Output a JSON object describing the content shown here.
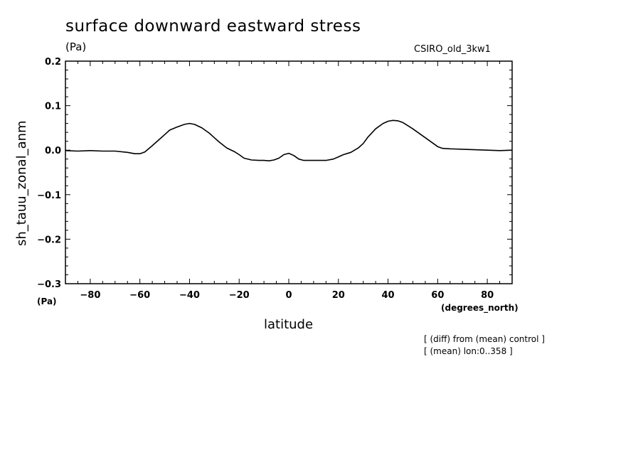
{
  "header": {
    "title": "surface downward eastward stress",
    "units": "(Pa)",
    "model": "CSIRO_old_3kw1"
  },
  "notes": {
    "line1": "[ (diff) from (mean) control ]",
    "line2": "[ (mean) lon:0..358 ]"
  },
  "chart_data": {
    "type": "line",
    "title": "surface downward eastward stress",
    "xlabel": "latitude",
    "x_units": "(degrees_north)",
    "ylabel": "sh_tauu_zonal_anm",
    "y_units": "(Pa)",
    "xlim": [
      -90,
      90
    ],
    "ylim": [
      -0.3,
      0.2
    ],
    "xticks": [
      -80,
      -60,
      -40,
      -20,
      0,
      20,
      40,
      60,
      80
    ],
    "xtick_labels": [
      "−80",
      "−60",
      "−40",
      "−20",
      "0",
      "20",
      "40",
      "60",
      "80"
    ],
    "yticks": [
      0.2,
      0.1,
      0.0,
      -0.1,
      -0.2,
      -0.3
    ],
    "ytick_labels": [
      "0.2",
      "0.1",
      "0.0",
      "−0.1",
      "−0.2",
      "−0.3"
    ],
    "grid": false,
    "series": [
      {
        "name": "sh_tauu_zonal_anm",
        "color": "#000000",
        "x": [
          -90,
          -85,
          -80,
          -75,
          -70,
          -65,
          -62,
          -60,
          -58,
          -55,
          -52,
          -50,
          -48,
          -45,
          -42,
          -40,
          -38,
          -35,
          -32,
          -30,
          -28,
          -25,
          -22,
          -20,
          -18,
          -15,
          -12,
          -10,
          -8,
          -6,
          -4,
          -2,
          0,
          2,
          4,
          6,
          8,
          10,
          12,
          15,
          18,
          20,
          22,
          25,
          28,
          30,
          32,
          35,
          38,
          40,
          42,
          44,
          46,
          48,
          50,
          52,
          55,
          58,
          60,
          62,
          65,
          70,
          75,
          80,
          85,
          90
        ],
        "y": [
          -0.001,
          -0.002,
          -0.001,
          -0.002,
          -0.002,
          -0.005,
          -0.008,
          -0.008,
          -0.004,
          0.01,
          0.025,
          0.035,
          0.045,
          0.052,
          0.058,
          0.06,
          0.058,
          0.05,
          0.038,
          0.028,
          0.018,
          0.005,
          -0.003,
          -0.01,
          -0.018,
          -0.022,
          -0.023,
          -0.023,
          -0.024,
          -0.022,
          -0.018,
          -0.01,
          -0.007,
          -0.012,
          -0.02,
          -0.023,
          -0.023,
          -0.023,
          -0.023,
          -0.023,
          -0.02,
          -0.015,
          -0.01,
          -0.005,
          0.005,
          0.015,
          0.03,
          0.048,
          0.06,
          0.065,
          0.067,
          0.066,
          0.062,
          0.055,
          0.048,
          0.04,
          0.028,
          0.016,
          0.008,
          0.004,
          0.003,
          0.002,
          0.001,
          0.0,
          -0.001,
          0.0
        ]
      }
    ]
  }
}
